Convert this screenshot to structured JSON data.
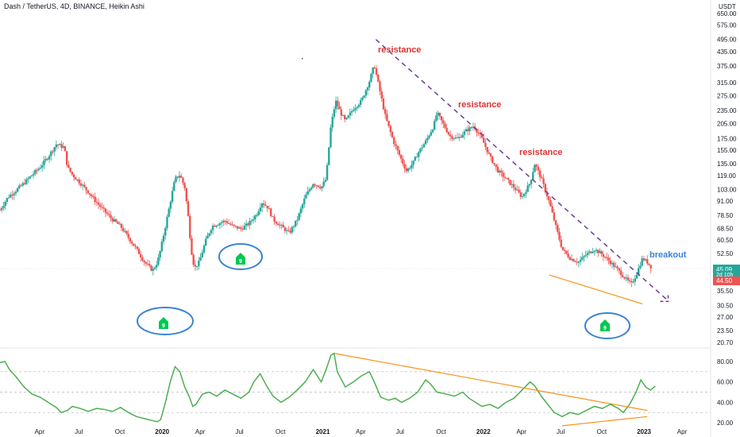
{
  "title": "Dash / TetherUS, 4D, BINANCE, Heikin Ashi",
  "currency": "USDT",
  "colors": {
    "up": "#26a69a",
    "down": "#ef5350",
    "trend": "#6a3d9a",
    "support": "#f7931a",
    "circle": "#3b82d6",
    "rsi": "#4caf50",
    "badge": "#00c853",
    "priceTag": "#26a69a",
    "priceTag2": "#ef5350"
  },
  "price_tags": {
    "current": "45.09",
    "countdown": "2d 10h",
    "low": "44.50"
  },
  "annotations": {
    "resistance_1": "resistance",
    "resistance_2": "resistance",
    "resistance_3": "resistance",
    "breakout": "breakout"
  },
  "badges": [
    "9",
    "9",
    "9"
  ],
  "chart_data": [
    {
      "type": "candlestick",
      "title": "Dash / TetherUS, 4D, BINANCE, Heikin Ashi",
      "scale": "log",
      "y_ticks": [
        "650.00",
        "575.00",
        "495.00",
        "435.00",
        "375.00",
        "315.00",
        "275.00",
        "235.00",
        "205.00",
        "175.00",
        "155.00",
        "135.00",
        "119.00",
        "103.00",
        "91.00",
        "78.50",
        "68.50",
        "60.50",
        "52.50",
        "45.00",
        "40.50",
        "35.50",
        "30.50",
        "27.00",
        "23.50",
        "20.70"
      ],
      "x_ticks": [
        {
          "label": "Apr",
          "t": 2019.25,
          "bold": false
        },
        {
          "label": "Jul",
          "t": 2019.5,
          "bold": false
        },
        {
          "label": "Oct",
          "t": 2019.75,
          "bold": false
        },
        {
          "label": "2020",
          "t": 2020.0,
          "bold": true
        },
        {
          "label": "Apr",
          "t": 2020.25,
          "bold": false
        },
        {
          "label": "Jul",
          "t": 2020.5,
          "bold": false
        },
        {
          "label": "Oct",
          "t": 2020.75,
          "bold": false
        },
        {
          "label": "2021",
          "t": 2021.0,
          "bold": true
        },
        {
          "label": "Apr",
          "t": 2021.25,
          "bold": false
        },
        {
          "label": "Jul",
          "t": 2021.5,
          "bold": false
        },
        {
          "label": "Oct",
          "t": 2021.75,
          "bold": false
        },
        {
          "label": "2022",
          "t": 2022.0,
          "bold": true
        },
        {
          "label": "Apr",
          "t": 2022.25,
          "bold": false
        },
        {
          "label": "Jul",
          "t": 2022.5,
          "bold": false
        },
        {
          "label": "Oct",
          "t": 2022.75,
          "bold": false
        },
        {
          "label": "2023",
          "t": 2023.0,
          "bold": true
        },
        {
          "label": "Apr",
          "t": 2023.25,
          "bold": false
        }
      ],
      "price_path": [
        [
          2019.0,
          83
        ],
        [
          2019.05,
          95
        ],
        [
          2019.1,
          102
        ],
        [
          2019.15,
          110
        ],
        [
          2019.2,
          120
        ],
        [
          2019.25,
          130
        ],
        [
          2019.3,
          145
        ],
        [
          2019.35,
          165
        ],
        [
          2019.4,
          160
        ],
        [
          2019.42,
          130
        ],
        [
          2019.45,
          120
        ],
        [
          2019.5,
          110
        ],
        [
          2019.55,
          100
        ],
        [
          2019.6,
          90
        ],
        [
          2019.65,
          82
        ],
        [
          2019.7,
          75
        ],
        [
          2019.75,
          70
        ],
        [
          2019.8,
          62
        ],
        [
          2019.85,
          55
        ],
        [
          2019.9,
          48
        ],
        [
          2019.95,
          44
        ],
        [
          2019.98,
          48
        ],
        [
          2020.0,
          55
        ],
        [
          2020.03,
          70
        ],
        [
          2020.06,
          90
        ],
        [
          2020.09,
          115
        ],
        [
          2020.12,
          120
        ],
        [
          2020.15,
          105
        ],
        [
          2020.17,
          80
        ],
        [
          2020.19,
          55
        ],
        [
          2020.21,
          45
        ],
        [
          2020.24,
          48
        ],
        [
          2020.28,
          60
        ],
        [
          2020.32,
          70
        ],
        [
          2020.36,
          72
        ],
        [
          2020.4,
          74
        ],
        [
          2020.45,
          70
        ],
        [
          2020.5,
          68
        ],
        [
          2020.55,
          72
        ],
        [
          2020.6,
          80
        ],
        [
          2020.63,
          90
        ],
        [
          2020.67,
          85
        ],
        [
          2020.7,
          75
        ],
        [
          2020.75,
          70
        ],
        [
          2020.8,
          65
        ],
        [
          2020.85,
          75
        ],
        [
          2020.9,
          95
        ],
        [
          2020.95,
          110
        ],
        [
          2021.0,
          105
        ],
        [
          2021.03,
          115
        ],
        [
          2021.06,
          200
        ],
        [
          2021.09,
          260
        ],
        [
          2021.12,
          230
        ],
        [
          2021.15,
          210
        ],
        [
          2021.2,
          240
        ],
        [
          2021.25,
          260
        ],
        [
          2021.3,
          320
        ],
        [
          2021.33,
          380
        ],
        [
          2021.36,
          300
        ],
        [
          2021.4,
          220
        ],
        [
          2021.45,
          170
        ],
        [
          2021.5,
          140
        ],
        [
          2021.53,
          125
        ],
        [
          2021.57,
          135
        ],
        [
          2021.6,
          150
        ],
        [
          2021.65,
          170
        ],
        [
          2021.7,
          200
        ],
        [
          2021.72,
          230
        ],
        [
          2021.75,
          210
        ],
        [
          2021.8,
          180
        ],
        [
          2021.85,
          175
        ],
        [
          2021.9,
          190
        ],
        [
          2021.95,
          200
        ],
        [
          2022.0,
          175
        ],
        [
          2022.05,
          145
        ],
        [
          2022.1,
          125
        ],
        [
          2022.15,
          115
        ],
        [
          2022.2,
          105
        ],
        [
          2022.25,
          95
        ],
        [
          2022.3,
          110
        ],
        [
          2022.33,
          135
        ],
        [
          2022.37,
          115
        ],
        [
          2022.42,
          90
        ],
        [
          2022.46,
          70
        ],
        [
          2022.5,
          55
        ],
        [
          2022.55,
          50
        ],
        [
          2022.6,
          48
        ],
        [
          2022.65,
          52
        ],
        [
          2022.7,
          55
        ],
        [
          2022.75,
          52
        ],
        [
          2022.8,
          48
        ],
        [
          2022.85,
          44
        ],
        [
          2022.9,
          40
        ],
        [
          2022.93,
          38
        ],
        [
          2022.96,
          42
        ],
        [
          2023.0,
          50
        ],
        [
          2023.03,
          48
        ],
        [
          2023.06,
          45
        ]
      ]
    },
    {
      "type": "line",
      "name": "RSI",
      "y_ticks": [
        "80.00",
        "60.00",
        "40.00",
        "20.00"
      ],
      "ylim": [
        15,
        100
      ],
      "points": [
        [
          2019.0,
          79
        ],
        [
          2019.03,
          80
        ],
        [
          2019.06,
          72
        ],
        [
          2019.1,
          65
        ],
        [
          2019.15,
          55
        ],
        [
          2019.2,
          48
        ],
        [
          2019.25,
          45
        ],
        [
          2019.3,
          40
        ],
        [
          2019.35,
          35
        ],
        [
          2019.38,
          30
        ],
        [
          2019.42,
          32
        ],
        [
          2019.45,
          36
        ],
        [
          2019.5,
          34
        ],
        [
          2019.55,
          31
        ],
        [
          2019.6,
          34
        ],
        [
          2019.65,
          33
        ],
        [
          2019.7,
          31
        ],
        [
          2019.75,
          35
        ],
        [
          2019.8,
          30
        ],
        [
          2019.85,
          26
        ],
        [
          2019.9,
          24
        ],
        [
          2019.95,
          22
        ],
        [
          2019.98,
          21
        ],
        [
          2020.0,
          23
        ],
        [
          2020.03,
          40
        ],
        [
          2020.06,
          60
        ],
        [
          2020.09,
          75
        ],
        [
          2020.12,
          70
        ],
        [
          2020.15,
          55
        ],
        [
          2020.18,
          45
        ],
        [
          2020.2,
          36
        ],
        [
          2020.22,
          38
        ],
        [
          2020.26,
          48
        ],
        [
          2020.3,
          50
        ],
        [
          2020.35,
          46
        ],
        [
          2020.4,
          52
        ],
        [
          2020.45,
          48
        ],
        [
          2020.5,
          44
        ],
        [
          2020.55,
          50
        ],
        [
          2020.58,
          60
        ],
        [
          2020.62,
          68
        ],
        [
          2020.66,
          56
        ],
        [
          2020.7,
          46
        ],
        [
          2020.75,
          40
        ],
        [
          2020.8,
          45
        ],
        [
          2020.85,
          52
        ],
        [
          2020.9,
          60
        ],
        [
          2020.95,
          72
        ],
        [
          2021.0,
          60
        ],
        [
          2021.03,
          72
        ],
        [
          2021.06,
          86
        ],
        [
          2021.08,
          88
        ],
        [
          2021.1,
          70
        ],
        [
          2021.15,
          55
        ],
        [
          2021.2,
          60
        ],
        [
          2021.25,
          66
        ],
        [
          2021.3,
          70
        ],
        [
          2021.33,
          60
        ],
        [
          2021.37,
          45
        ],
        [
          2021.42,
          42
        ],
        [
          2021.46,
          44
        ],
        [
          2021.5,
          40
        ],
        [
          2021.55,
          44
        ],
        [
          2021.6,
          50
        ],
        [
          2021.65,
          62
        ],
        [
          2021.68,
          58
        ],
        [
          2021.72,
          50
        ],
        [
          2021.78,
          48
        ],
        [
          2021.83,
          46
        ],
        [
          2021.88,
          50
        ],
        [
          2021.92,
          44
        ],
        [
          2021.96,
          40
        ],
        [
          2022.0,
          36
        ],
        [
          2022.05,
          38
        ],
        [
          2022.1,
          34
        ],
        [
          2022.15,
          40
        ],
        [
          2022.2,
          44
        ],
        [
          2022.25,
          52
        ],
        [
          2022.3,
          60
        ],
        [
          2022.33,
          56
        ],
        [
          2022.37,
          46
        ],
        [
          2022.41,
          38
        ],
        [
          2022.45,
          30
        ],
        [
          2022.5,
          26
        ],
        [
          2022.55,
          30
        ],
        [
          2022.6,
          28
        ],
        [
          2022.65,
          32
        ],
        [
          2022.7,
          36
        ],
        [
          2022.75,
          34
        ],
        [
          2022.8,
          38
        ],
        [
          2022.85,
          34
        ],
        [
          2022.88,
          30
        ],
        [
          2022.92,
          38
        ],
        [
          2022.96,
          50
        ],
        [
          2022.99,
          62
        ],
        [
          2023.02,
          55
        ],
        [
          2023.05,
          52
        ],
        [
          2023.08,
          56
        ]
      ]
    }
  ]
}
